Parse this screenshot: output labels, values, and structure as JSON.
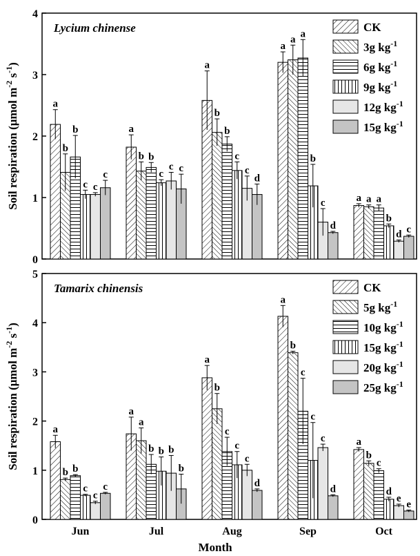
{
  "chart_data": [
    {
      "type": "bar",
      "title": "Lycium chinense",
      "categories": [
        "Jun",
        "Jul",
        "Aug",
        "Sep",
        "Oct"
      ],
      "ylabel": "Soil respiration (μmol m⁻² s⁻¹)",
      "ylim": [
        0,
        4
      ],
      "yticks": [
        "0",
        "1",
        "2",
        "3",
        "4"
      ],
      "legend_position": "top-right",
      "series": [
        {
          "name": "CK",
          "pattern": "diag-right",
          "values": [
            2.19,
            1.82,
            2.58,
            3.2,
            0.87
          ],
          "errors": [
            0.24,
            0.2,
            0.48,
            0.17,
            0.03
          ],
          "labels": [
            "a",
            "a",
            "a",
            "a",
            "a"
          ]
        },
        {
          "name": "3g kg-1",
          "pattern": "diag-left",
          "values": [
            1.41,
            1.43,
            2.06,
            3.24,
            0.85
          ],
          "errors": [
            0.3,
            0.15,
            0.22,
            0.24,
            0.03
          ],
          "labels": [
            "b",
            "b",
            "b",
            "a",
            "a"
          ]
        },
        {
          "name": "6g kg-1",
          "pattern": "horizontal",
          "values": [
            1.66,
            1.49,
            1.87,
            3.27,
            0.83
          ],
          "errors": [
            0.35,
            0.08,
            0.12,
            0.3,
            0.05
          ],
          "labels": [
            "b",
            "b",
            "b",
            "a",
            "a"
          ]
        },
        {
          "name": "9g kg-1",
          "pattern": "vertical",
          "values": [
            1.05,
            1.24,
            1.44,
            1.19,
            0.54
          ],
          "errors": [
            0.07,
            0.05,
            0.14,
            0.35,
            0.03
          ],
          "labels": [
            "c",
            "c",
            "c",
            "b",
            "b"
          ]
        },
        {
          "name": "12g kg-1",
          "pattern": "light",
          "values": [
            1.05,
            1.27,
            1.15,
            0.6,
            0.29
          ],
          "errors": [
            0.03,
            0.14,
            0.2,
            0.22,
            0.02
          ],
          "labels": [
            "c",
            "c",
            "c",
            "c",
            "d"
          ]
        },
        {
          "name": "15g kg-1",
          "pattern": "gray",
          "values": [
            1.16,
            1.14,
            1.05,
            0.43,
            0.37
          ],
          "errors": [
            0.12,
            0.24,
            0.17,
            0.02,
            0.02
          ],
          "labels": [
            "c",
            "c",
            "d",
            "d",
            "c"
          ]
        }
      ]
    },
    {
      "type": "bar",
      "title": "Tamarix chinensis",
      "categories": [
        "Jun",
        "Jul",
        "Aug",
        "Sep",
        "Oct"
      ],
      "xlabel": "Month",
      "ylabel": "Soil respiration (μmol m⁻² s⁻¹)",
      "ylim": [
        0,
        5
      ],
      "yticks": [
        "0",
        "1",
        "2",
        "3",
        "4",
        "5"
      ],
      "legend_position": "top-right",
      "series": [
        {
          "name": "CK",
          "pattern": "diag-right",
          "values": [
            1.58,
            1.74,
            2.88,
            4.13,
            1.42
          ],
          "errors": [
            0.13,
            0.34,
            0.25,
            0.22,
            0.04
          ],
          "labels": [
            "a",
            "a",
            "a",
            "a",
            "a"
          ]
        },
        {
          "name": "5g kg-1",
          "pattern": "diag-left",
          "values": [
            0.81,
            1.6,
            2.25,
            3.39,
            1.14
          ],
          "errors": [
            0.03,
            0.26,
            0.31,
            0.03,
            0.05
          ],
          "labels": [
            "b",
            "a",
            "b",
            "b",
            "b"
          ]
        },
        {
          "name": "10g kg-1",
          "pattern": "horizontal",
          "values": [
            0.89,
            1.12,
            1.38,
            2.2,
            0.99
          ],
          "errors": [
            0.02,
            0.2,
            0.29,
            0.67,
            0.04
          ],
          "labels": [
            "b",
            "b",
            "c",
            "c",
            "c"
          ]
        },
        {
          "name": "15g kg-1",
          "pattern": "vertical",
          "values": [
            0.49,
            0.98,
            1.11,
            1.2,
            0.41
          ],
          "errors": [
            0.02,
            0.29,
            0.27,
            0.77,
            0.04
          ],
          "labels": [
            "c",
            "b",
            "c",
            "c",
            "d"
          ]
        },
        {
          "name": "20g kg-1",
          "pattern": "light",
          "values": [
            0.34,
            0.94,
            1.0,
            1.46,
            0.28
          ],
          "errors": [
            0.03,
            0.36,
            0.12,
            0.07,
            0.03
          ],
          "labels": [
            "c",
            "b",
            "c",
            "c",
            "e"
          ]
        },
        {
          "name": "25g kg-1",
          "pattern": "gray",
          "values": [
            0.53,
            0.62,
            0.59,
            0.48,
            0.17
          ],
          "errors": [
            0.02,
            0.3,
            0.03,
            0.02,
            0.02
          ],
          "labels": [
            "c",
            "b",
            "d",
            "d",
            "e"
          ]
        }
      ]
    }
  ]
}
